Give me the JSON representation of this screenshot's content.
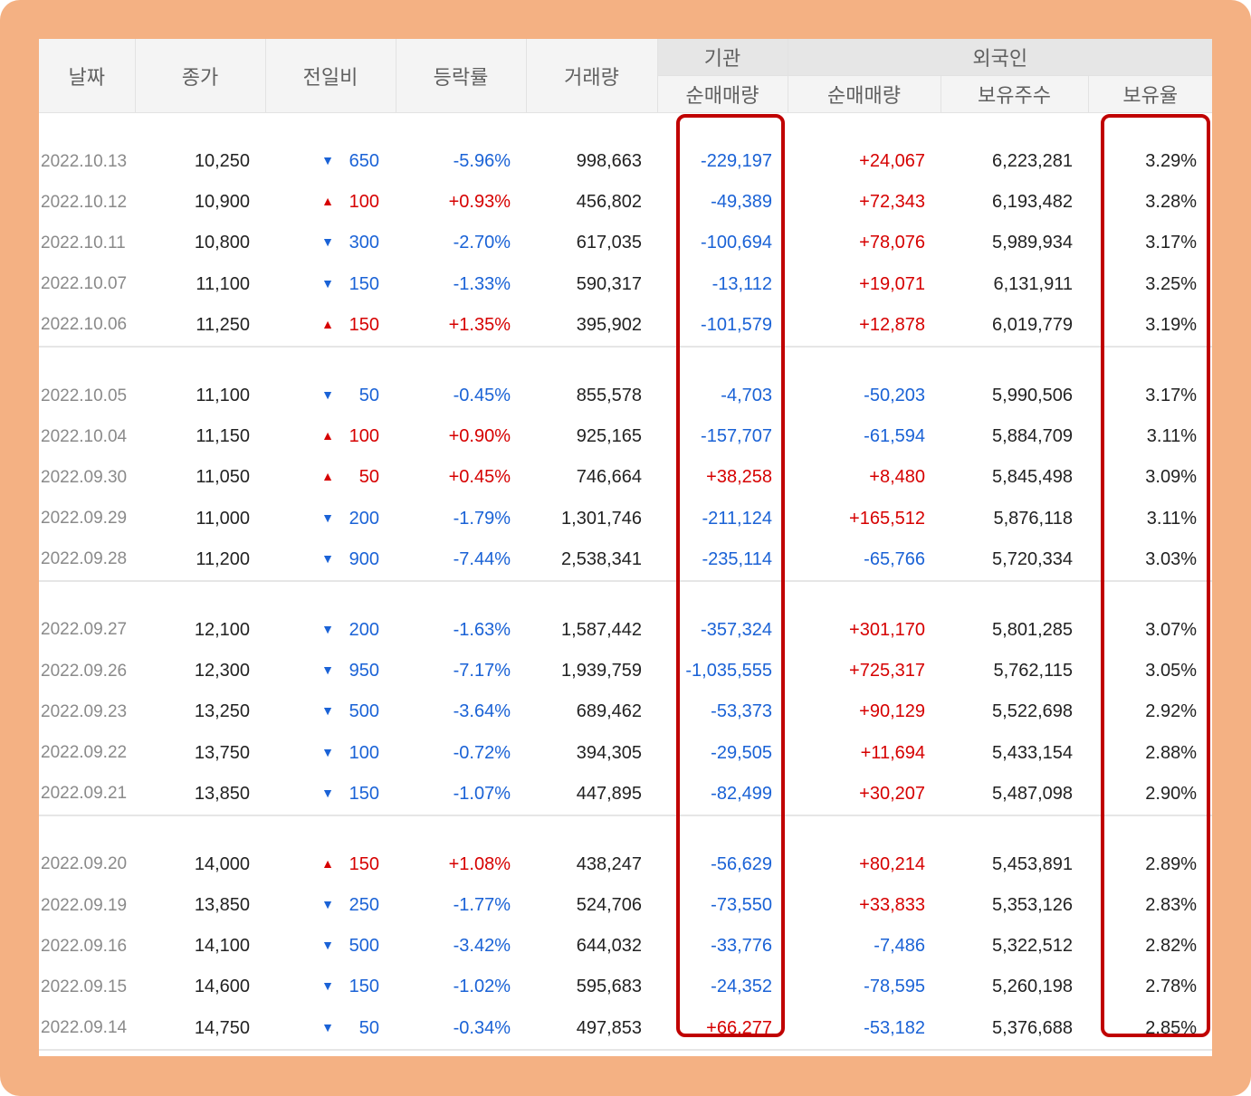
{
  "header": {
    "date": "날짜",
    "close": "종가",
    "change": "전일비",
    "rate": "등락률",
    "volume": "거래량",
    "institution": "기관",
    "foreigner": "외국인",
    "inst_net": "순매매량",
    "frgn_net": "순매매량",
    "frgn_shares": "보유주수",
    "frgn_ratio": "보유율"
  },
  "colors": {
    "up": "#d60000",
    "down": "#1a62d6",
    "highlight": "#c00000",
    "frame": "#f4b183"
  },
  "arrows": {
    "up": "▲",
    "down": "▼"
  },
  "groups": [
    [
      {
        "date": "2022.10.13",
        "close": "10,250",
        "dir": "down",
        "diff": "650",
        "rate": "-5.96%",
        "volume": "998,663",
        "inst": "-229,197",
        "frgn": "+24,067",
        "shares": "6,223,281",
        "ratio": "3.29%"
      },
      {
        "date": "2022.10.12",
        "close": "10,900",
        "dir": "up",
        "diff": "100",
        "rate": "+0.93%",
        "volume": "456,802",
        "inst": "-49,389",
        "frgn": "+72,343",
        "shares": "6,193,482",
        "ratio": "3.28%"
      },
      {
        "date": "2022.10.11",
        "close": "10,800",
        "dir": "down",
        "diff": "300",
        "rate": "-2.70%",
        "volume": "617,035",
        "inst": "-100,694",
        "frgn": "+78,076",
        "shares": "5,989,934",
        "ratio": "3.17%"
      },
      {
        "date": "2022.10.07",
        "close": "11,100",
        "dir": "down",
        "diff": "150",
        "rate": "-1.33%",
        "volume": "590,317",
        "inst": "-13,112",
        "frgn": "+19,071",
        "shares": "6,131,911",
        "ratio": "3.25%"
      },
      {
        "date": "2022.10.06",
        "close": "11,250",
        "dir": "up",
        "diff": "150",
        "rate": "+1.35%",
        "volume": "395,902",
        "inst": "-101,579",
        "frgn": "+12,878",
        "shares": "6,019,779",
        "ratio": "3.19%"
      }
    ],
    [
      {
        "date": "2022.10.05",
        "close": "11,100",
        "dir": "down",
        "diff": "50",
        "rate": "-0.45%",
        "volume": "855,578",
        "inst": "-4,703",
        "frgn": "-50,203",
        "shares": "5,990,506",
        "ratio": "3.17%"
      },
      {
        "date": "2022.10.04",
        "close": "11,150",
        "dir": "up",
        "diff": "100",
        "rate": "+0.90%",
        "volume": "925,165",
        "inst": "-157,707",
        "frgn": "-61,594",
        "shares": "5,884,709",
        "ratio": "3.11%"
      },
      {
        "date": "2022.09.30",
        "close": "11,050",
        "dir": "up",
        "diff": "50",
        "rate": "+0.45%",
        "volume": "746,664",
        "inst": "+38,258",
        "frgn": "+8,480",
        "shares": "5,845,498",
        "ratio": "3.09%"
      },
      {
        "date": "2022.09.29",
        "close": "11,000",
        "dir": "down",
        "diff": "200",
        "rate": "-1.79%",
        "volume": "1,301,746",
        "inst": "-211,124",
        "frgn": "+165,512",
        "shares": "5,876,118",
        "ratio": "3.11%"
      },
      {
        "date": "2022.09.28",
        "close": "11,200",
        "dir": "down",
        "diff": "900",
        "rate": "-7.44%",
        "volume": "2,538,341",
        "inst": "-235,114",
        "frgn": "-65,766",
        "shares": "5,720,334",
        "ratio": "3.03%"
      }
    ],
    [
      {
        "date": "2022.09.27",
        "close": "12,100",
        "dir": "down",
        "diff": "200",
        "rate": "-1.63%",
        "volume": "1,587,442",
        "inst": "-357,324",
        "frgn": "+301,170",
        "shares": "5,801,285",
        "ratio": "3.07%"
      },
      {
        "date": "2022.09.26",
        "close": "12,300",
        "dir": "down",
        "diff": "950",
        "rate": "-7.17%",
        "volume": "1,939,759",
        "inst": "-1,035,555",
        "frgn": "+725,317",
        "shares": "5,762,115",
        "ratio": "3.05%"
      },
      {
        "date": "2022.09.23",
        "close": "13,250",
        "dir": "down",
        "diff": "500",
        "rate": "-3.64%",
        "volume": "689,462",
        "inst": "-53,373",
        "frgn": "+90,129",
        "shares": "5,522,698",
        "ratio": "2.92%"
      },
      {
        "date": "2022.09.22",
        "close": "13,750",
        "dir": "down",
        "diff": "100",
        "rate": "-0.72%",
        "volume": "394,305",
        "inst": "-29,505",
        "frgn": "+11,694",
        "shares": "5,433,154",
        "ratio": "2.88%"
      },
      {
        "date": "2022.09.21",
        "close": "13,850",
        "dir": "down",
        "diff": "150",
        "rate": "-1.07%",
        "volume": "447,895",
        "inst": "-82,499",
        "frgn": "+30,207",
        "shares": "5,487,098",
        "ratio": "2.90%"
      }
    ],
    [
      {
        "date": "2022.09.20",
        "close": "14,000",
        "dir": "up",
        "diff": "150",
        "rate": "+1.08%",
        "volume": "438,247",
        "inst": "-56,629",
        "frgn": "+80,214",
        "shares": "5,453,891",
        "ratio": "2.89%"
      },
      {
        "date": "2022.09.19",
        "close": "13,850",
        "dir": "down",
        "diff": "250",
        "rate": "-1.77%",
        "volume": "524,706",
        "inst": "-73,550",
        "frgn": "+33,833",
        "shares": "5,353,126",
        "ratio": "2.83%"
      },
      {
        "date": "2022.09.16",
        "close": "14,100",
        "dir": "down",
        "diff": "500",
        "rate": "-3.42%",
        "volume": "644,032",
        "inst": "-33,776",
        "frgn": "-7,486",
        "shares": "5,322,512",
        "ratio": "2.82%"
      },
      {
        "date": "2022.09.15",
        "close": "14,600",
        "dir": "down",
        "diff": "150",
        "rate": "-1.02%",
        "volume": "595,683",
        "inst": "-24,352",
        "frgn": "-78,595",
        "shares": "5,260,198",
        "ratio": "2.78%"
      },
      {
        "date": "2022.09.14",
        "close": "14,750",
        "dir": "down",
        "diff": "50",
        "rate": "-0.34%",
        "volume": "497,853",
        "inst": "+66,277",
        "frgn": "-53,182",
        "shares": "5,376,688",
        "ratio": "2.85%"
      }
    ]
  ]
}
